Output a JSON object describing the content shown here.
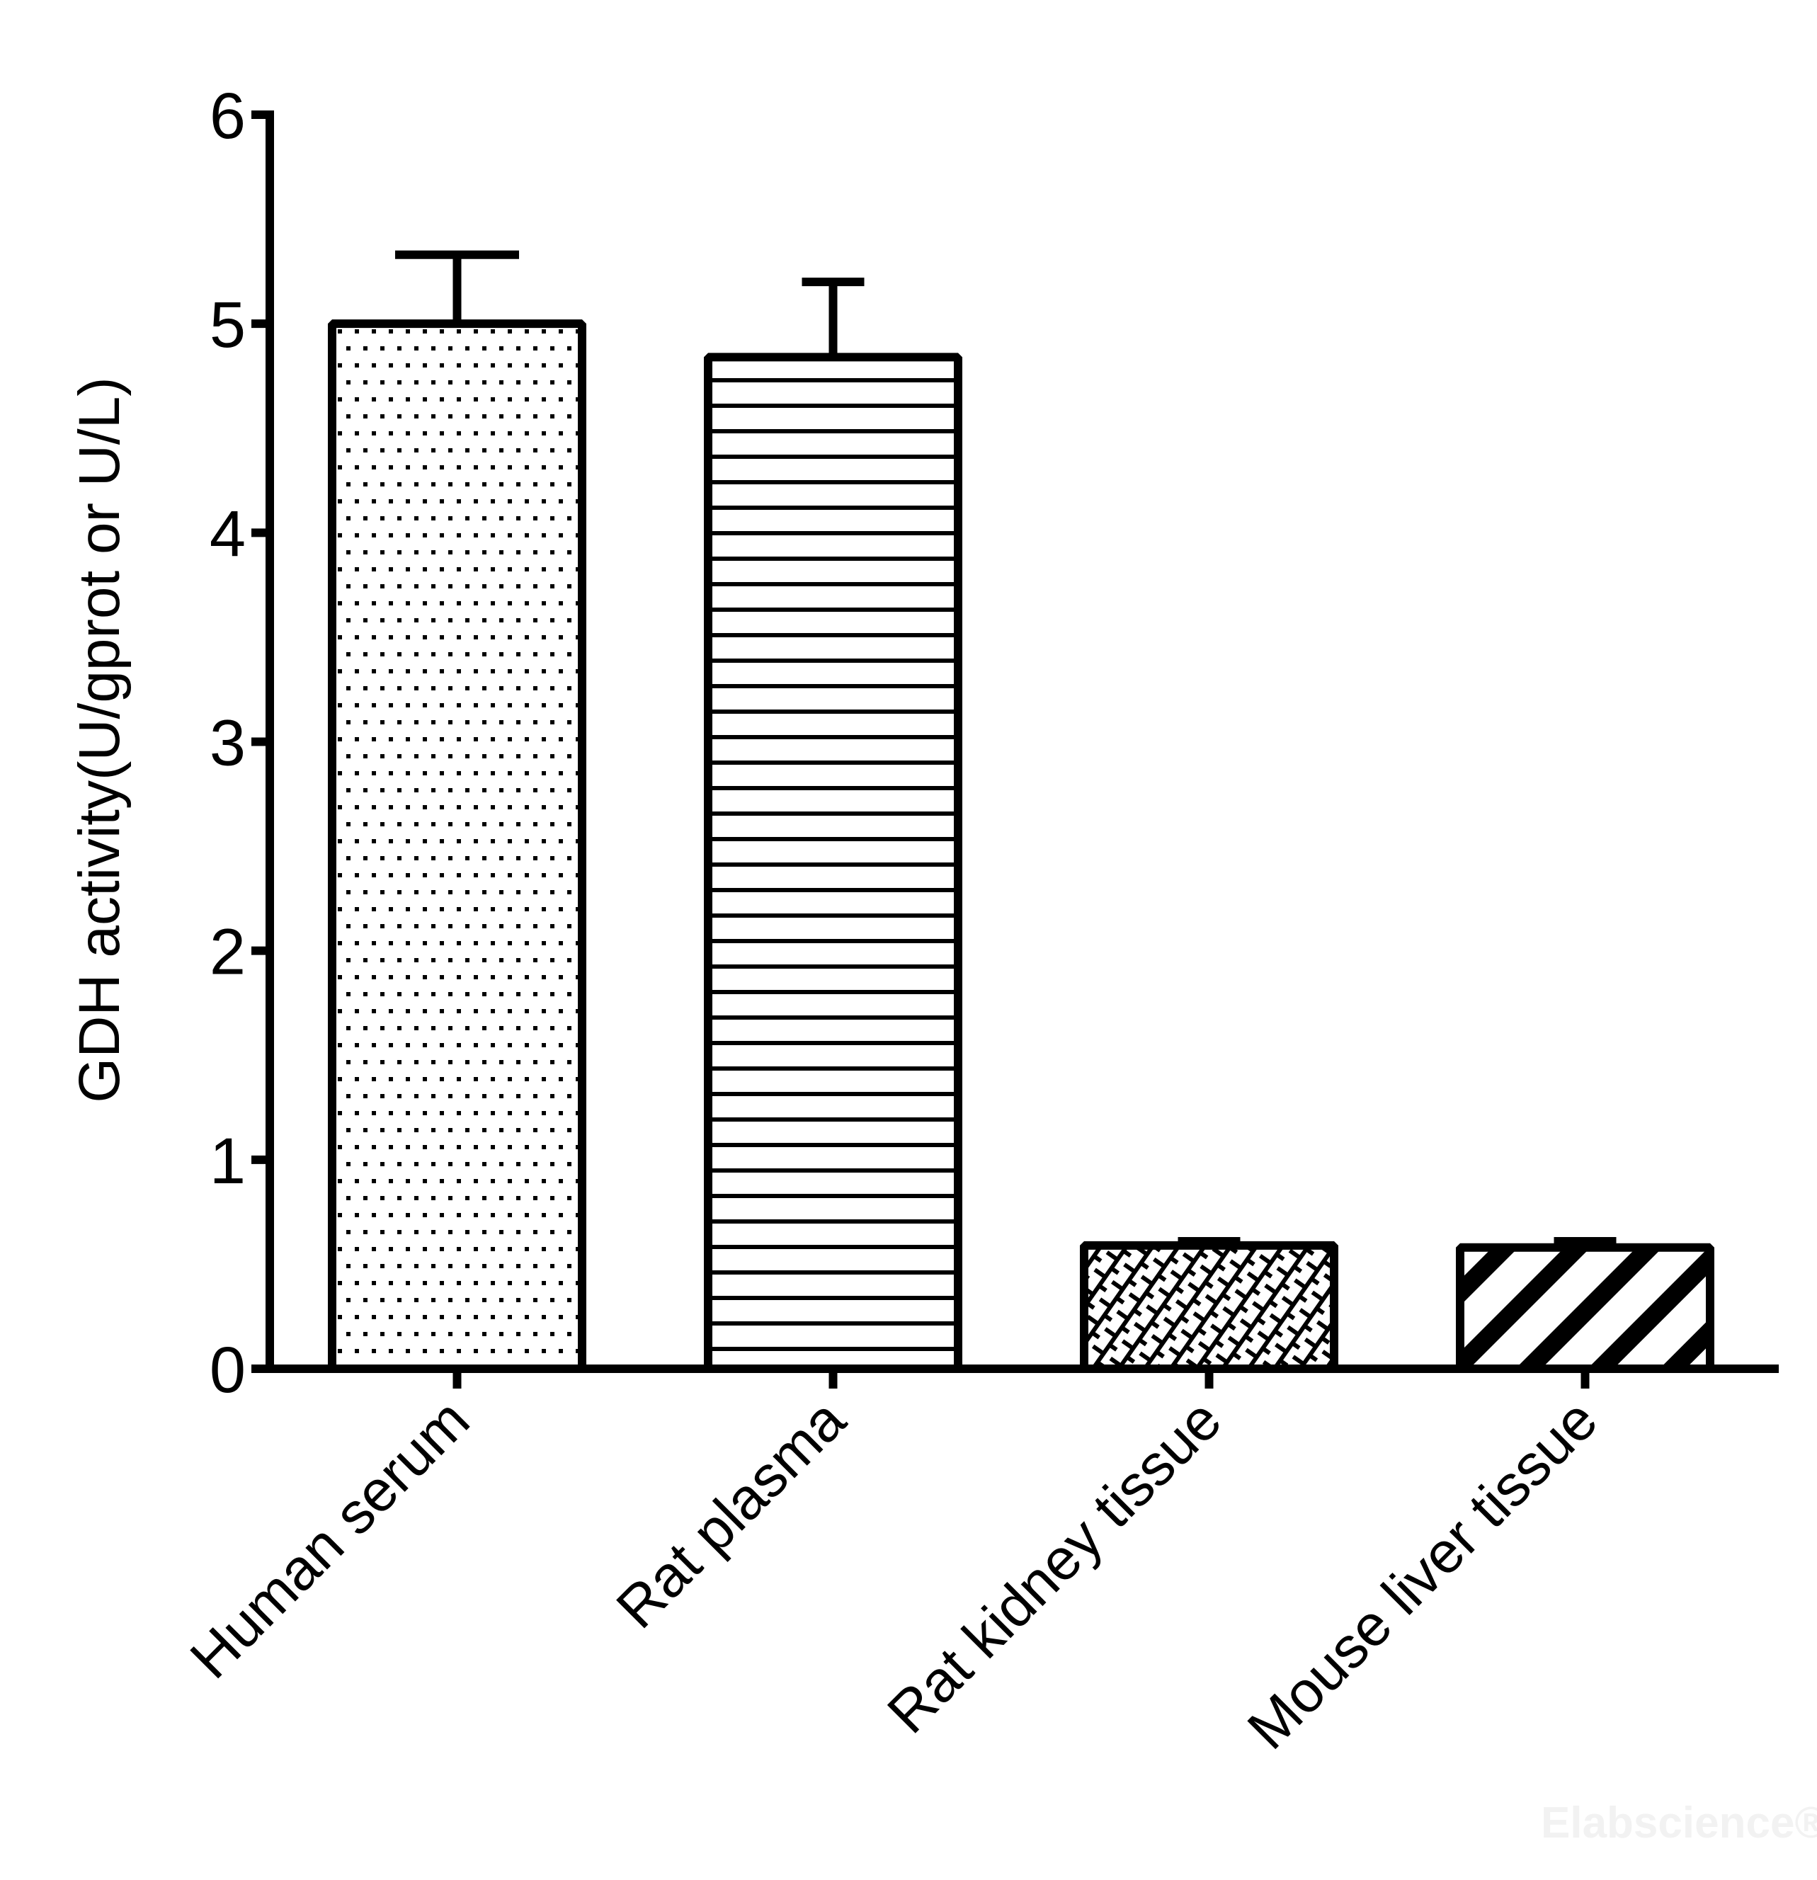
{
  "chart_data": {
    "type": "bar",
    "title": "",
    "xlabel": "",
    "ylabel": "GDH activity(U/gprot or U/L)",
    "ylim": [
      0,
      6
    ],
    "yticks": [
      0,
      1,
      2,
      3,
      4,
      5,
      6
    ],
    "grid": false,
    "legend": null,
    "categories": [
      "Human serum",
      "Rat plasma",
      "Rat kidney tissue",
      "Mouse liver tissue"
    ],
    "values": [
      5.0,
      4.84,
      0.59,
      0.58
    ],
    "error_upper": [
      5.33,
      5.2,
      0.61,
      0.61
    ],
    "error_plus": [
      0.33,
      0.36,
      0.02,
      0.03
    ],
    "patterns": [
      "dots",
      "horizontal-lines",
      "brick-crosshatch",
      "wide-diagonal-stripes"
    ],
    "x_label_rotation_deg": -45
  },
  "watermark": "Elabscience®",
  "colors": {
    "ink": "#000000",
    "background": "#ffffff",
    "watermark": "#f2f2f2"
  }
}
